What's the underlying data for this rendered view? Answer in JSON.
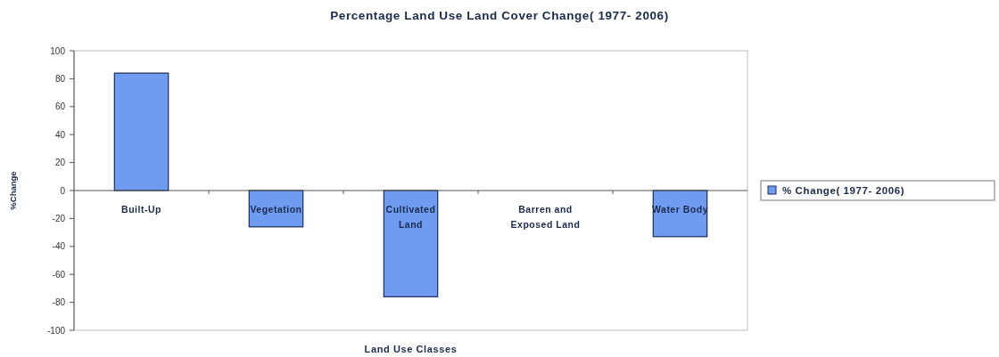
{
  "chart_data": {
    "type": "bar",
    "title": "Percentage Land Use Land Cover  Change( 1977- 2006)",
    "xlabel": "Land Use Classes",
    "ylabel": "%Change",
    "categories": [
      "Built-Up",
      "Vegetation",
      "Cultivated Land",
      "Barren and Exposed Land",
      "Water Body"
    ],
    "series": [
      {
        "name": "% Change( 1977- 2006)",
        "color": "#6f9cf0",
        "values": [
          84,
          -26,
          -76,
          0,
          -33
        ]
      }
    ],
    "ylim": [
      -100,
      100
    ],
    "yticks": [
      -100,
      -80,
      -60,
      -40,
      -20,
      0,
      20,
      40,
      60,
      80,
      100
    ],
    "grid": false,
    "legend": "right"
  }
}
